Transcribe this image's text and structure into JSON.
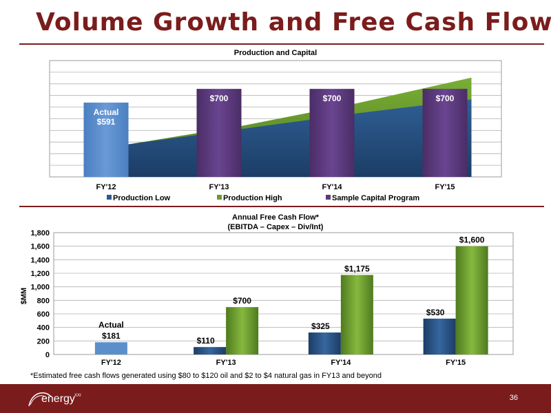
{
  "slide": {
    "title": "Volume Growth and Free Cash Flow",
    "footnote": "*Estimated free cash flows generated using $80 to $120 oil and $2 to $4 natural gas in FY13 and beyond",
    "page_number": "36",
    "logo_text": "energy",
    "logo_superscript": "XXI",
    "colors": {
      "brand": "#7b1c1c",
      "production_low": "#2e5a8e",
      "production_high": "#6a9a2e",
      "capital": "#5d3a7a",
      "actual": "#5b8fcc"
    }
  },
  "chart_data": [
    {
      "type": "bar",
      "title": "Production and Capital",
      "categories": [
        "FY'12",
        "FY'13",
        "FY'14",
        "FY'15"
      ],
      "series": [
        {
          "name": "Sample Capital Program",
          "values": [
            591,
            700,
            700,
            700
          ]
        }
      ],
      "bar_labels": [
        [
          "Actual",
          "$591"
        ],
        [
          "$700"
        ],
        [
          "$700"
        ],
        [
          "$700"
        ]
      ],
      "area_series": [
        {
          "name": "Production Low",
          "values": [
            0.42,
            0.62,
            0.82,
            1.0
          ]
        },
        {
          "name": "Production High",
          "values": [
            0.42,
            0.66,
            0.95,
            1.28
          ]
        }
      ],
      "ylim": [
        0,
        1.5
      ],
      "y_axis_labels": false,
      "grid": true,
      "legend_position": "bottom",
      "legend": [
        "Production Low",
        "Production High",
        "Sample Capital Program"
      ]
    },
    {
      "type": "bar",
      "title": "Annual Free Cash Flow*",
      "subtitle": "(EBITDA – Capex – Div/Int)",
      "ylabel": "$MM",
      "categories": [
        "FY'12",
        "FY'13",
        "FY'14",
        "FY'15"
      ],
      "ylim": [
        0,
        1800
      ],
      "yticks": [
        "0",
        "200",
        "400",
        "600",
        "800",
        "1,000",
        "1,200",
        "1,400",
        "1,600",
        "1,800"
      ],
      "grid": true,
      "actual": {
        "category": "FY'12",
        "value": 181,
        "labels": [
          "Actual",
          "$181"
        ]
      },
      "series": [
        {
          "name": "Production Low",
          "values": [
            null,
            110,
            325,
            530
          ],
          "labels": [
            "",
            "$110",
            "$325",
            "$530"
          ]
        },
        {
          "name": "Production High",
          "values": [
            null,
            700,
            1175,
            1600
          ],
          "labels": [
            "",
            "$700",
            "$1,175",
            "$1,600"
          ]
        }
      ]
    }
  ]
}
